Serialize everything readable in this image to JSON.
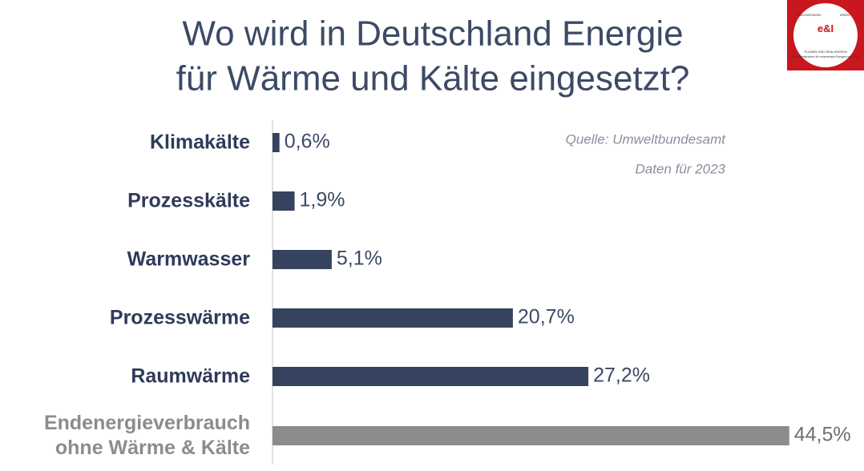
{
  "chart_data": {
    "type": "barh",
    "title": [
      "Wo wird in Deutschland Energie",
      "für Wärme und Kälte eingesetzt?"
    ],
    "annotations": [
      "Quelle: Umweltbundesamt",
      "Daten für 2023"
    ],
    "categories": [
      "Klimakälte",
      "Prozesskälte",
      "Warmwasser",
      "Prozesswärme",
      "Raumwärme",
      "Endenergieverbrauch\nohne Wärme & Kälte"
    ],
    "values": [
      0.6,
      1.9,
      5.1,
      20.7,
      27.2,
      44.5
    ],
    "value_labels": [
      "0,6%",
      "1,9%",
      "5,1%",
      "20,7%",
      "27,2%",
      "44,5%"
    ],
    "colors": [
      "#36435e",
      "#36435e",
      "#36435e",
      "#36435e",
      "#36435e",
      "#8c8c8c"
    ],
    "xlim": [
      0,
      45
    ]
  },
  "logo": {
    "left": "MACHDENKEN",
    "right": "IDEEN",
    "mark": "e&I",
    "tagline": "PLANEN UND REALISIEREN",
    "company": "E&I Ingenieurbüro für erneuerbare Energien und TGA"
  }
}
